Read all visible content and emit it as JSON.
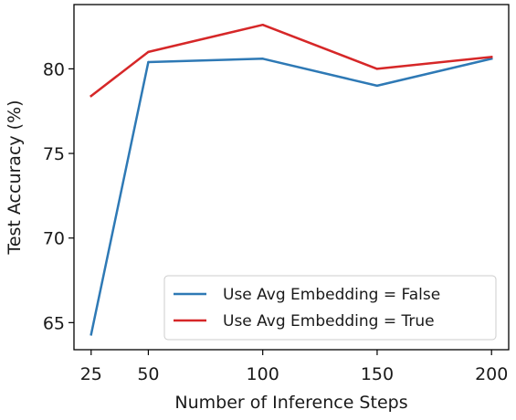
{
  "chart_data": {
    "type": "line",
    "title": "",
    "xlabel": "Number of Inference Steps",
    "ylabel": "Test Accuracy (%)",
    "x": [
      25,
      50,
      100,
      150,
      200
    ],
    "x_ticks": [
      "25",
      "50",
      "100",
      "150",
      "200"
    ],
    "y_ticks": [
      "65",
      "70",
      "75",
      "80"
    ],
    "xlim": [
      17.5,
      207.5
    ],
    "ylim": [
      63.4,
      83.8
    ],
    "grid": false,
    "legend_position": "lower-right",
    "series": [
      {
        "name": "Use Avg Embedding = False",
        "color": "#2e79b5",
        "values": [
          64.3,
          80.4,
          80.6,
          79.0,
          80.6
        ]
      },
      {
        "name": "Use Avg Embedding = True",
        "color": "#d62728",
        "values": [
          78.4,
          81.0,
          82.6,
          80.0,
          80.7
        ]
      }
    ]
  }
}
